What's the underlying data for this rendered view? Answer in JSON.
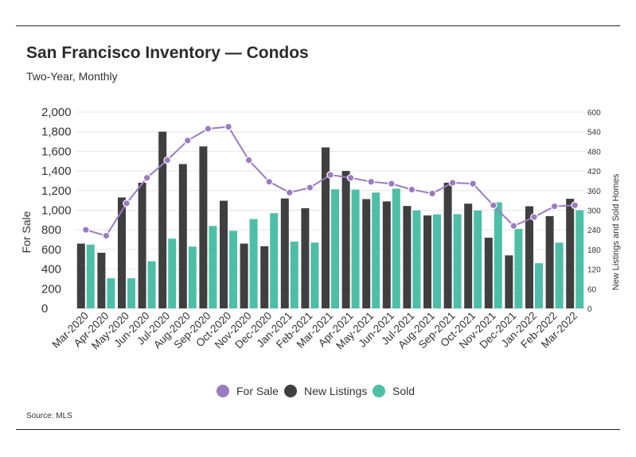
{
  "header": {
    "title": "San Francisco Inventory — Condos",
    "subtitle": "Two-Year, Monthly"
  },
  "footer": {
    "source": "Source:  MLS"
  },
  "colors": {
    "for_sale": "#9b7bbf",
    "new_listings": "#3f3f3f",
    "sold": "#4dbfa6",
    "grid": "#e6e6e6",
    "text": "#333333"
  },
  "chart_data": {
    "type": "bar",
    "title": "San Francisco Inventory — Condos",
    "subtitle": "Two-Year, Monthly",
    "categories": [
      "Mar-2020",
      "Apr-2020",
      "May-2020",
      "Jun-2020",
      "Jul-2020",
      "Aug-2020",
      "Sep-2020",
      "Oct-2020",
      "Nov-2020",
      "Dec-2020",
      "Jan-2021",
      "Feb-2021",
      "Mar-2021",
      "Apr-2021",
      "May-2021",
      "Jun-2021",
      "Jul-2021",
      "Aug-2021",
      "Sep-2021",
      "Oct-2021",
      "Nov-2021",
      "Dec-2021",
      "Jan-2022",
      "Feb-2022",
      "Mar-2022"
    ],
    "ylabel": "For Sale",
    "y2label": "New Listings and Sold Homes",
    "ylim": [
      0,
      2000
    ],
    "yticks": [
      "0",
      "200",
      "400",
      "600",
      "800",
      "1,000",
      "1,200",
      "1,400",
      "1,600",
      "1,800",
      "2,000"
    ],
    "y2lim": [
      0,
      600
    ],
    "y2ticks": [
      "0",
      "60",
      "120",
      "180",
      "240",
      "300",
      "360",
      "420",
      "480",
      "540",
      "600"
    ],
    "grid": true,
    "legend_position": "bottom",
    "series": [
      {
        "name": "For Sale",
        "type": "line",
        "axis": "left",
        "values": [
          800,
          740,
          1070,
          1330,
          1510,
          1710,
          1830,
          1850,
          1510,
          1290,
          1180,
          1230,
          1360,
          1330,
          1290,
          1270,
          1210,
          1170,
          1280,
          1270,
          1050,
          840,
          930,
          1040,
          1050
        ]
      },
      {
        "name": "New Listings",
        "type": "bar",
        "axis": "right",
        "values": [
          198,
          170,
          339,
          384,
          540,
          441,
          495,
          329,
          198,
          190,
          336,
          306,
          492,
          420,
          334,
          327,
          313,
          284,
          384,
          320,
          216,
          162,
          312,
          282,
          335
        ]
      },
      {
        "name": "Sold",
        "type": "bar",
        "axis": "right",
        "values": [
          195,
          92,
          92,
          144,
          213,
          189,
          252,
          237,
          273,
          291,
          204,
          201,
          364,
          363,
          354,
          366,
          299,
          287,
          288,
          299,
          324,
          243,
          138,
          201,
          300
        ]
      }
    ]
  }
}
